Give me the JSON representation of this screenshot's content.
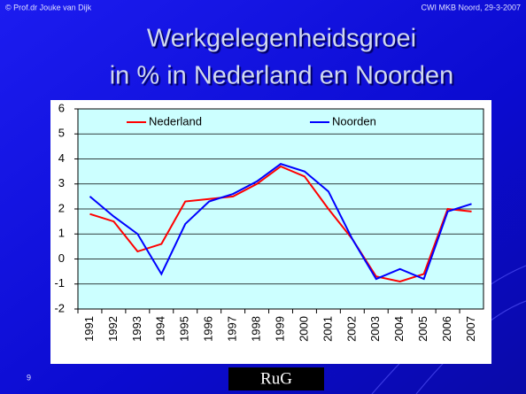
{
  "header": {
    "left": "© Prof.dr Jouke van Dijk",
    "right": "CWI MKB Noord, 29-3-2007"
  },
  "footer": {
    "page": "9",
    "logo": "RuG"
  },
  "chart_data": {
    "type": "line",
    "title": [
      "Werkgelegenheidsgroei",
      "in % in Nederland en Noorden"
    ],
    "categories": [
      "1991",
      "1992",
      "1993",
      "1994",
      "1995",
      "1996",
      "1997",
      "1998",
      "1999",
      "2000",
      "2001",
      "2002",
      "2003",
      "2004",
      "2005",
      "2006",
      "2007"
    ],
    "series": [
      {
        "name": "Nederland",
        "color": "#ff0000",
        "values": [
          1.8,
          1.5,
          0.3,
          0.6,
          2.3,
          2.4,
          2.5,
          3.0,
          3.7,
          3.3,
          2.0,
          0.8,
          -0.7,
          -0.9,
          -0.6,
          2.0,
          1.9
        ]
      },
      {
        "name": "Noorden",
        "color": "#0000ff",
        "values": [
          2.5,
          1.7,
          1.0,
          -0.6,
          1.4,
          2.3,
          2.6,
          3.1,
          3.8,
          3.5,
          2.7,
          0.8,
          -0.8,
          -0.4,
          -0.8,
          1.9,
          2.2
        ]
      }
    ],
    "ylim": [
      -2,
      6
    ],
    "yticks": [
      -2,
      -1,
      0,
      1,
      2,
      3,
      4,
      5,
      6
    ],
    "grid": true,
    "legend": "top"
  }
}
